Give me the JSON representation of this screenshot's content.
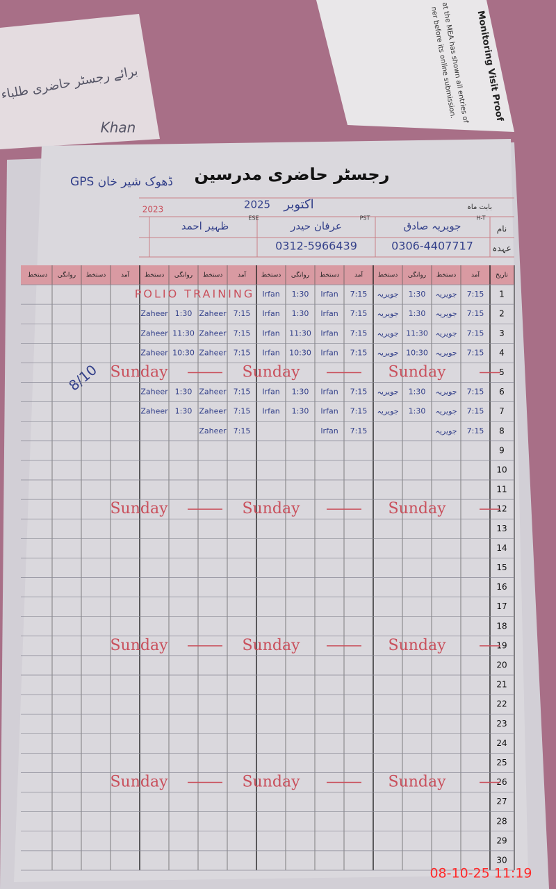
{
  "register": {
    "title": "رجسٹر حاضری مدرسین",
    "school": "GPS ڈھوک شیر خان",
    "month_label": "بابت ماہ",
    "month": "اکتوبر",
    "year": "2025",
    "year_note": "2023",
    "name_label": "نام",
    "post_label": "عہدہ",
    "teachers": [
      {
        "name": "جویریہ صادق",
        "post": "H-T",
        "phone": "0306-4407717"
      },
      {
        "name": "عرفان حیدر",
        "post": "PST",
        "phone": "0312-5966439"
      },
      {
        "name": "ظہیر احمد",
        "post": "ESE"
      }
    ],
    "date_header": "تاریخ",
    "column_headers": [
      "آمد",
      "دستخط",
      "روانگی",
      "دستخط"
    ],
    "days": [
      1,
      2,
      3,
      4,
      5,
      6,
      7,
      8,
      9,
      10,
      11,
      12,
      13,
      14,
      15,
      16,
      17,
      18,
      19,
      20,
      21,
      22,
      23,
      24,
      25,
      26,
      27,
      28,
      29,
      30
    ],
    "entries": [
      {
        "day": 1,
        "cells": [
          "7:15",
          "جویریہ",
          "1:30",
          "جویریہ",
          "7:15",
          "Irfan",
          "1:30",
          "Irfan"
        ]
      },
      {
        "day": 2,
        "cells": [
          "7:15",
          "جویریہ",
          "1:30",
          "جویریہ",
          "7:15",
          "Irfan",
          "1:30",
          "Irfan",
          "7:15",
          "Zaheer",
          "1:30",
          "Zaheer"
        ]
      },
      {
        "day": 3,
        "cells": [
          "7:15",
          "جویریہ",
          "11:30",
          "جویریہ",
          "7:15",
          "Irfan",
          "11:30",
          "Irfan",
          "7:15",
          "Zaheer",
          "11:30",
          "Zaheer"
        ]
      },
      {
        "day": 4,
        "cells": [
          "7:15",
          "جویریہ",
          "10:30",
          "جویریہ",
          "7:15",
          "Irfan",
          "10:30",
          "Irfan",
          "7:15",
          "Zaheer",
          "10:30",
          "Zaheer"
        ]
      },
      {
        "day": 6,
        "cells": [
          "7:15",
          "جویریہ",
          "1:30",
          "جویریہ",
          "7:15",
          "Irfan",
          "1:30",
          "Irfan",
          "7:15",
          "Zaheer",
          "1:30",
          "Zaheer"
        ]
      },
      {
        "day": 7,
        "cells": [
          "7:15",
          "جویریہ",
          "1:30",
          "جویریہ",
          "7:15",
          "Irfan",
          "1:30",
          "Irfan",
          "7:15",
          "Zaheer",
          "1:30",
          "Zaheer"
        ]
      },
      {
        "day": 8,
        "cells": [
          "7:15",
          "جویریہ",
          null,
          null,
          "7:15",
          "Irfan",
          null,
          null,
          "7:15",
          "Zaheer"
        ]
      }
    ],
    "polio_note": {
      "day": 1,
      "text": "POLIO TRAINING"
    },
    "sundays": [
      {
        "day": 5,
        "text": "Sunday"
      },
      {
        "day": 12,
        "text": "Sunday"
      },
      {
        "day": 19,
        "text": "Sunday"
      },
      {
        "day": 26,
        "text": "Sunday"
      }
    ],
    "visit_note": "8/10"
  },
  "background": {
    "slip_title": "Monitoring Visit Proof",
    "slip_line1": "at the MEA has shown all entries of",
    "slip_line2": "ner before its online submission.",
    "card_text": "برائے رجسٹر حاضری طلباء",
    "card_name": "Khan"
  },
  "timestamp": "08-10-25 11:19"
}
